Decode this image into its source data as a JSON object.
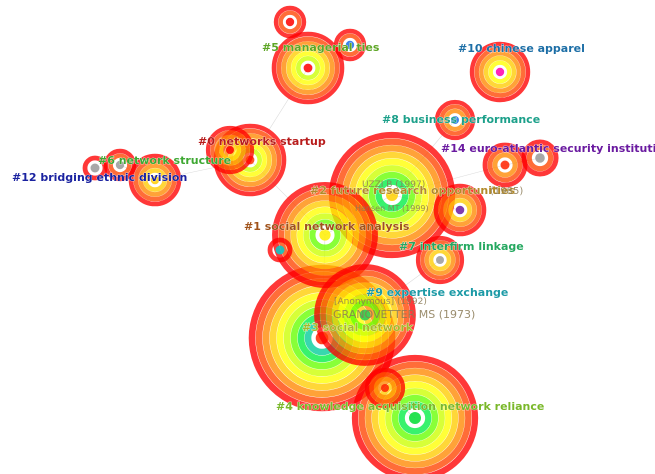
{
  "clusters": [
    {
      "label": "#0 networks startup",
      "color": "#b81c1c"
    },
    {
      "label": "#1 social network analysis",
      "color": "#a0521a"
    },
    {
      "label": "#2 future research opportunities",
      "color": "#b28a2a"
    },
    {
      "label": "#3 social network",
      "color": "#a8b82a"
    },
    {
      "label": "#4 knowledge acquisition network reliance",
      "color": "#7ab82a"
    },
    {
      "label": "#5 managerial ties",
      "color": "#5ea626"
    },
    {
      "label": "#6 network structure",
      "color": "#3ea832"
    },
    {
      "label": "#7 interfirm linkage",
      "color": "#25a860"
    },
    {
      "label": "#8 business performance",
      "color": "#1ca08a"
    },
    {
      "label": "#9 expertise exchange",
      "color": "#1c9aa6"
    },
    {
      "label": "#10 chinese apparel",
      "color": "#1c6ea6"
    },
    {
      "label": "#12 bridging ethnic division",
      "color": "#1a22a0"
    },
    {
      "label": "#14 euro-atlantic security institution",
      "color": "#6a1aa0"
    }
  ],
  "references": [
    {
      "label": "GRANOVETTER MS (1973)",
      "color": "#b6a84a"
    },
    {
      "label": "[Anonymous] (1992)",
      "color": "#8a7a55"
    },
    {
      "label": "Hansen MT (1999)",
      "color": "#8a7a55"
    },
    {
      "label": "UZZI B (1997)",
      "color": "#8a7a55"
    },
    {
      "label": "(1985)",
      "color": "#8a7a55"
    }
  ],
  "ring_colors": [
    "#ff0000",
    "#ff4400",
    "#ff8800",
    "#ffcc00",
    "#ffff00",
    "#ccff00",
    "#66ff00",
    "#00ee44",
    "#00cc99"
  ]
}
